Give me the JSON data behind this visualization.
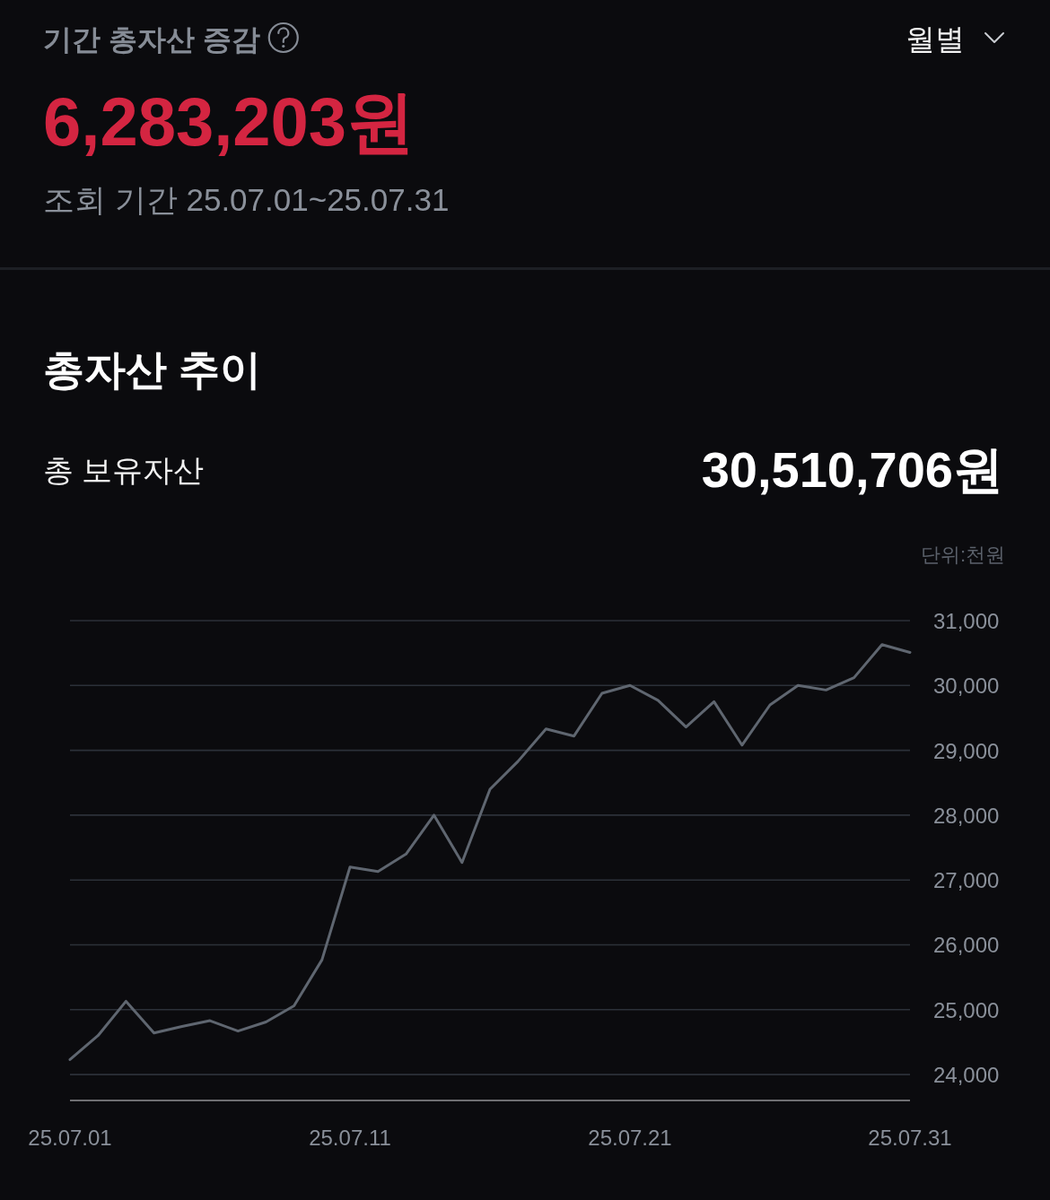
{
  "chart_data": {
    "type": "line",
    "title": "총자산 추이",
    "ylabel": "단위:천원",
    "annotations": [
      "기간 총자산 증감",
      "월별",
      "6,283,203원",
      "조회 기간 25.07.01~25.07.31",
      "총 보유자산",
      "30,510,706원"
    ],
    "categories": [
      "25.07.01",
      null,
      null,
      null,
      null,
      null,
      null,
      null,
      null,
      null,
      "25.07.11",
      null,
      null,
      null,
      null,
      null,
      null,
      null,
      null,
      null,
      "25.07.21",
      null,
      null,
      null,
      null,
      null,
      null,
      null,
      null,
      null,
      "25.07.31"
    ],
    "values": [
      24230,
      24600,
      25130,
      24640,
      24740,
      24830,
      24670,
      24810,
      25060,
      25770,
      27200,
      27130,
      27400,
      28000,
      27270,
      28400,
      28830,
      29330,
      29220,
      29880,
      30000,
      29770,
      29360,
      29750,
      29080,
      29700,
      30000,
      29930,
      30120,
      30630,
      30510
    ],
    "color": "#5f6670",
    "ylim": [
      23600,
      31000
    ],
    "yticks": [
      {
        "value": 24000,
        "label": "24,000"
      },
      {
        "value": 25000,
        "label": "25,000"
      },
      {
        "value": 26000,
        "label": "26,000"
      },
      {
        "value": 27000,
        "label": "27,000"
      },
      {
        "value": 28000,
        "label": "28,000"
      },
      {
        "value": 29000,
        "label": "29,000"
      },
      {
        "value": 30000,
        "label": "30,000"
      },
      {
        "value": 31000,
        "label": "31,000"
      }
    ],
    "grid": "y"
  }
}
